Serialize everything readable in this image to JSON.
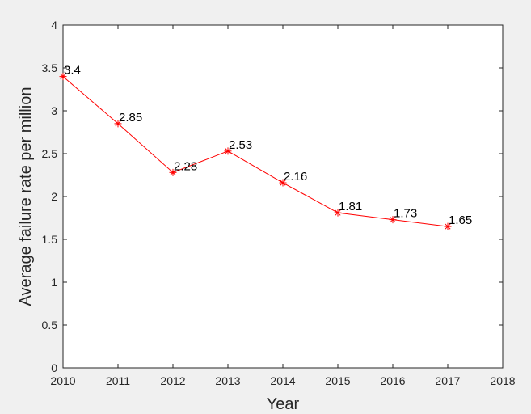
{
  "chart_data": {
    "type": "line",
    "title": "",
    "xlabel": "Year",
    "ylabel": "Average failure rate per million",
    "xlim": [
      2010,
      2018
    ],
    "ylim": [
      0,
      4
    ],
    "x_ticks": [
      "2010",
      "2011",
      "2012",
      "2013",
      "2014",
      "2015",
      "2016",
      "2017",
      "2018"
    ],
    "y_ticks": [
      "0",
      "0.5",
      "1",
      "1.5",
      "2",
      "2.5",
      "3",
      "3.5",
      "4"
    ],
    "grid": false,
    "legend": "none",
    "marker": "asterisk",
    "series": [
      {
        "color": "#ff0000",
        "x": [
          2010,
          2011,
          2012,
          2013,
          2014,
          2015,
          2016,
          2017
        ],
        "y": [
          3.4,
          2.85,
          2.28,
          2.53,
          2.16,
          1.81,
          1.73,
          1.65
        ],
        "labels": [
          "3.4",
          "2.85",
          "2.28",
          "2.53",
          "2.16",
          "1.81",
          "1.73",
          "1.65"
        ]
      }
    ]
  }
}
